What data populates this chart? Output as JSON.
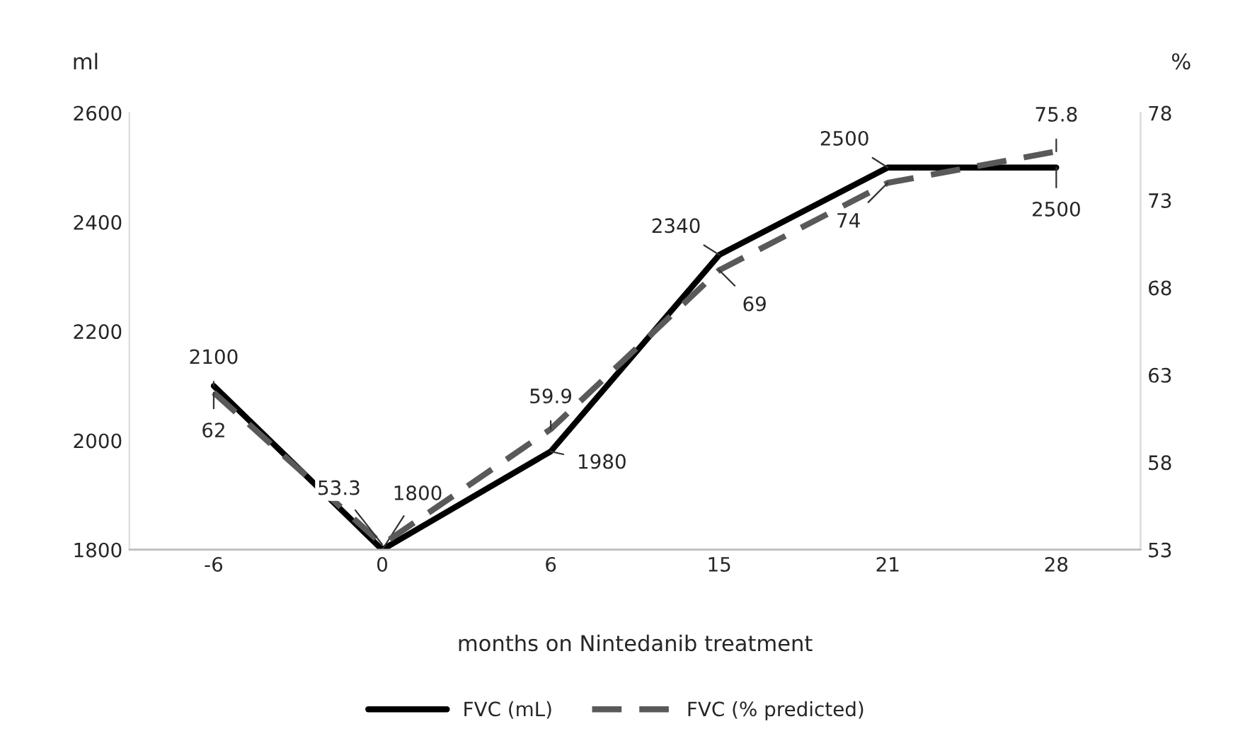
{
  "chart_data": {
    "type": "line",
    "xlabel": "months on Nintedanib treatment",
    "ylabel": "ml",
    "y2label": "%",
    "categories": [
      "-6",
      "0",
      "6",
      "15",
      "21",
      "28"
    ],
    "series": [
      {
        "name": "FVC (mL)",
        "color": "#000000",
        "values": [
          2100,
          1800,
          1980,
          2340,
          2500,
          2500
        ],
        "line_style": "solid"
      },
      {
        "name": "FVC (% predicted)",
        "color": "#595959",
        "values": [
          62,
          53.3,
          59.9,
          69,
          74,
          75.8
        ],
        "axis": "y2",
        "line_style": "dashed"
      }
    ],
    "ylim": [
      1800,
      2600
    ],
    "yticks": [
      1800,
      2000,
      2200,
      2400,
      2600
    ],
    "y2lim": [
      53,
      78
    ],
    "y2ticks": [
      53,
      58,
      63,
      68,
      73,
      78
    ],
    "data_labels": true,
    "legend": "bottom",
    "grid": false,
    "marker": "none"
  }
}
